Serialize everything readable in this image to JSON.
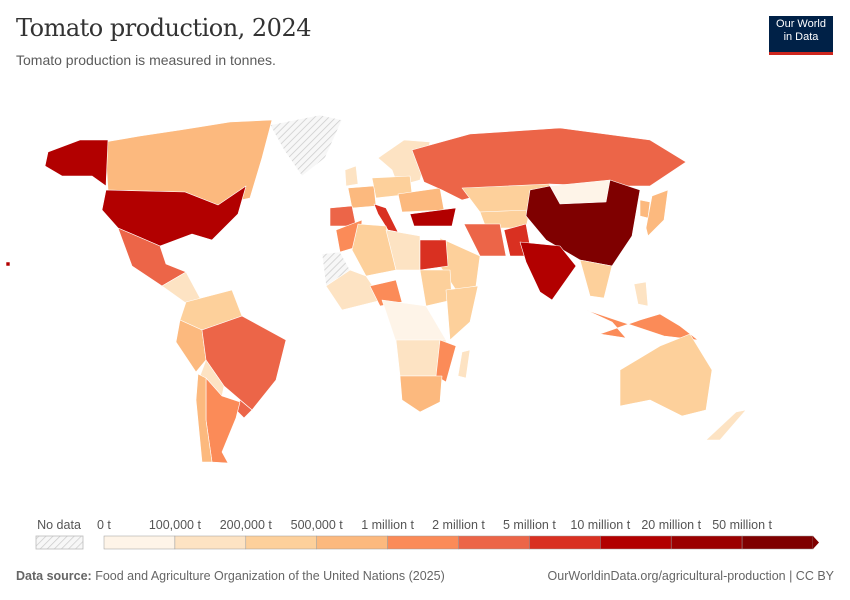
{
  "header": {
    "title": "Tomato production, 2024",
    "subtitle": "Tomato production is measured in tonnes.",
    "logo_line1": "Our World",
    "logo_line2": "in Data"
  },
  "legend": {
    "no_data_label": "No data",
    "bins": [
      "0 t",
      "100,000 t",
      "200,000 t",
      "500,000 t",
      "1 million t",
      "2 million t",
      "5 million t",
      "10 million t",
      "20 million t",
      "50 million t"
    ],
    "colors": [
      "#fef4e8",
      "#fde3c3",
      "#fdd09b",
      "#fcb97e",
      "#fb8b58",
      "#ec6548",
      "#d93021",
      "#b20000",
      "#9b0000",
      "#7f0000"
    ]
  },
  "map": {
    "region_bins": {
      "alaska": 7,
      "canada": 3,
      "greenland": -1,
      "usa": 7,
      "mexico": 5,
      "central_america": 1,
      "colombia_venezuela": 2,
      "peru": 3,
      "brazil": 5,
      "bolivia_paraguay": 1,
      "argentina": 4,
      "chile": 3,
      "uruguay": 5,
      "spain": 5,
      "france": 3,
      "italy": 6,
      "germany_poland": 2,
      "scandinavia": 1,
      "uk": 1,
      "ukraine_balkans": 3,
      "turkey": 7,
      "russia": 5,
      "kazakhstan": 2,
      "china": 9,
      "mongolia": 0,
      "india": 7,
      "pakistan": 6,
      "iran": 5,
      "central_asia": 2,
      "saudi": 2,
      "morocco": 4,
      "algeria": 2,
      "libya": 1,
      "egypt": 6,
      "west_africa": 1,
      "nigeria": 4,
      "sahara": -1,
      "sudan": 2,
      "central_africa": 0,
      "east_africa": 2,
      "southern_africa": 1,
      "south_africa": 3,
      "mozambique": 4,
      "madagascar": 1,
      "japan": 3,
      "korea": 3,
      "southeast_asia": 2,
      "indonesia": 4,
      "philippines": 1,
      "australia": 2,
      "new_zealand": 1,
      "hawaii": 7
    }
  },
  "footer": {
    "source_label": "Data source:",
    "source_text": "Food and Agriculture Organization of the United Nations (2025)",
    "url_license": "OurWorldinData.org/agricultural-production | CC BY"
  }
}
